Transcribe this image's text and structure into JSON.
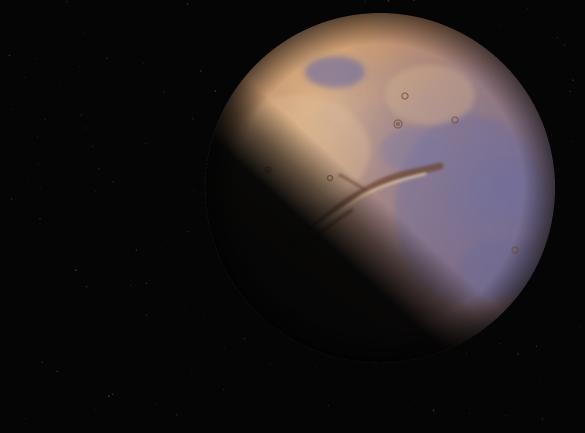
{
  "scene": {
    "subject": "Mars",
    "colors": {
      "space": "#050505",
      "surface_light": "#d9b48c",
      "surface_mid": "#c48e62",
      "surface_dark": "#9a6844",
      "bluish_regions": "#6a6a9a",
      "shadow": "#050505"
    }
  }
}
